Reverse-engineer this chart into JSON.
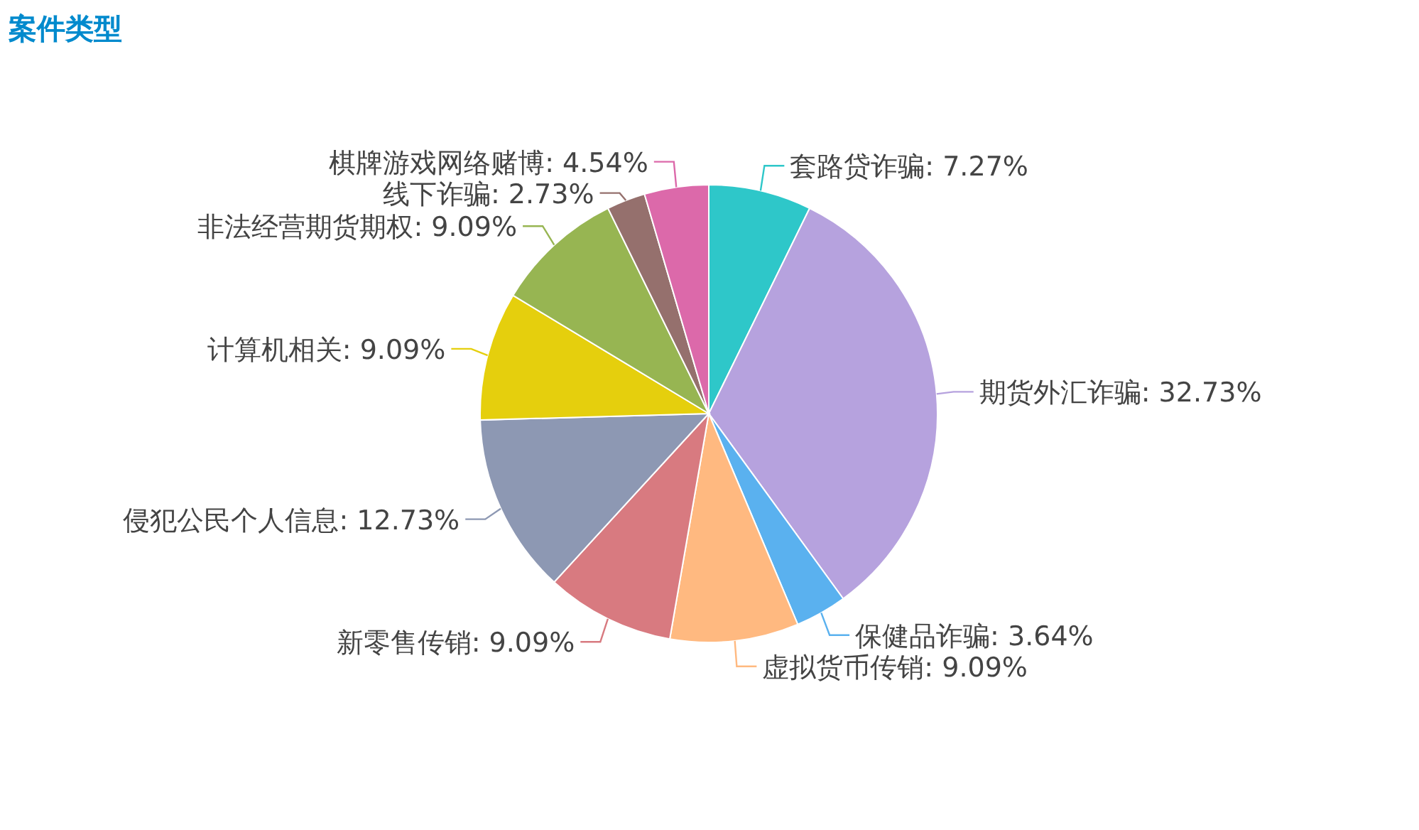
{
  "chart_data": {
    "type": "pie",
    "title": "案件类型",
    "categories": [
      "套路贷诈骗",
      "期货外汇诈骗",
      "保健品诈骗",
      "虚拟货币传销",
      "新零售传销",
      "侵犯公民个人信息",
      "计算机相关",
      "非法经营期货期权",
      "线下诈骗",
      "棋牌游戏网络赌博"
    ],
    "values": [
      7.27,
      32.73,
      3.64,
      9.09,
      9.09,
      12.73,
      9.09,
      9.09,
      2.73,
      4.54
    ],
    "value_labels": [
      ": 7.27%",
      ": 32.73%",
      ": 3.64%",
      ": 9.09%",
      ": 9.09%",
      ": 12.73%",
      ": 9.09%",
      ": 9.09%",
      ": 2.73%",
      ": 4.54%"
    ],
    "colors": [
      "#2ec7c9",
      "#b6a2de",
      "#5ab1ef",
      "#ffb980",
      "#d87a80",
      "#8d98b3",
      "#e5cf0d",
      "#97b552",
      "#95706d",
      "#dc69aa"
    ]
  }
}
